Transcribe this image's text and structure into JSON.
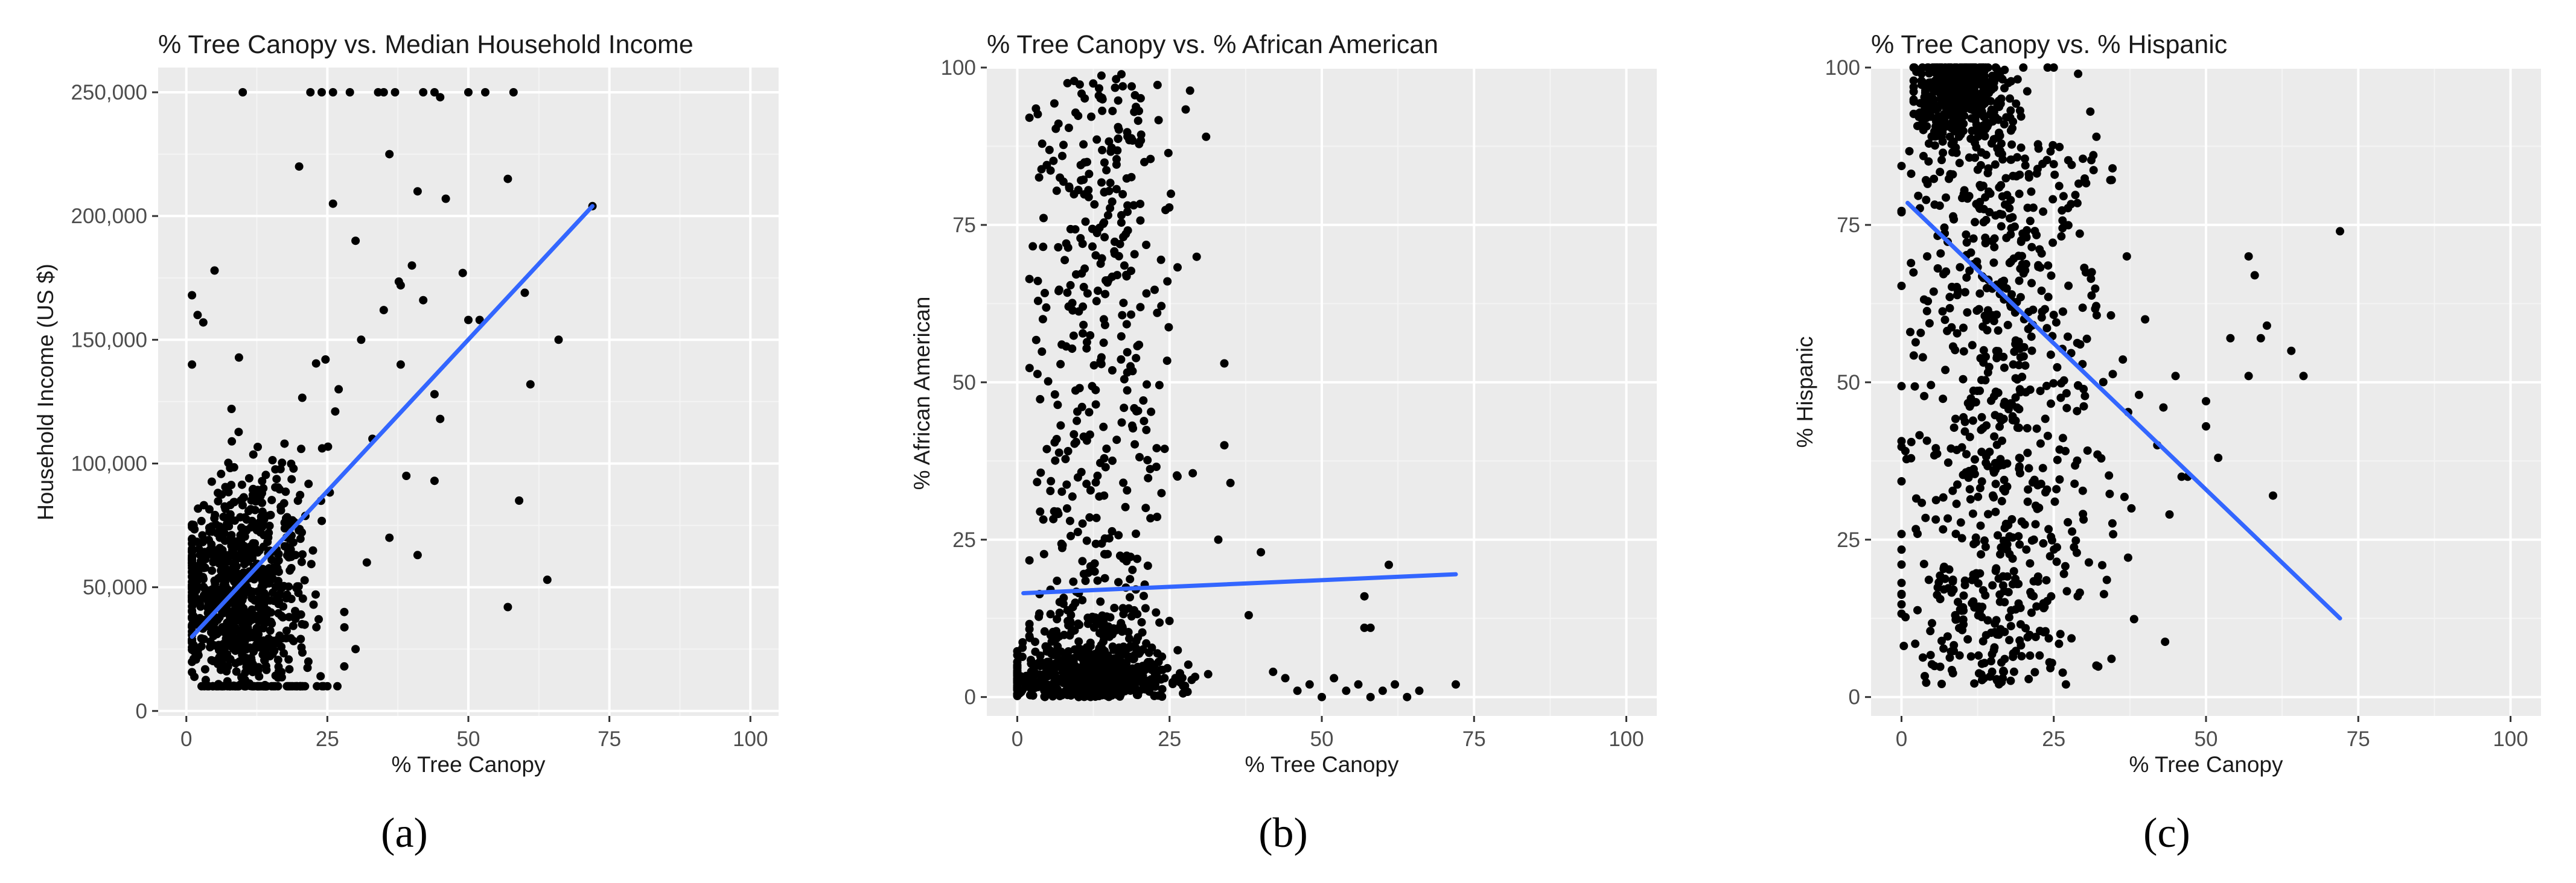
{
  "chart_data": [
    {
      "type": "scatter",
      "panel_label": "(a)",
      "title": "% Tree Canopy vs. Median Household Income",
      "xlabel": "% Tree Canopy",
      "ylabel": "Household Income (US $)",
      "xlim": [
        -5,
        105
      ],
      "ylim": [
        -2000,
        260000
      ],
      "x_ticks": [
        0,
        25,
        50,
        75,
        100
      ],
      "x_tick_labels": [
        "0",
        "25",
        "50",
        "75",
        "100"
      ],
      "y_ticks": [
        0,
        50000,
        100000,
        150000,
        200000,
        250000
      ],
      "y_tick_labels": [
        "0",
        "50,000",
        "100,000",
        "150,000",
        "200,000",
        "250,000"
      ],
      "grid": true,
      "background": "#ebebeb",
      "point_color": "#000000",
      "trend_line": {
        "color": "#3366ff",
        "x": [
          1,
          72
        ],
        "y": [
          30000,
          204000
        ]
      },
      "cluster": {
        "x_center": 10,
        "x_sd": 6,
        "x_min": 1,
        "x_max": 40,
        "y_center": 48000,
        "y_sd": 26000,
        "y_min": 10000,
        "y_max": 200000,
        "count": 850,
        "seed": 11
      },
      "points": [
        {
          "x": 10,
          "y": 250000
        },
        {
          "x": 22,
          "y": 250000
        },
        {
          "x": 24,
          "y": 250000
        },
        {
          "x": 26,
          "y": 250000
        },
        {
          "x": 29,
          "y": 250000
        },
        {
          "x": 34,
          "y": 250000
        },
        {
          "x": 35,
          "y": 250000
        },
        {
          "x": 44,
          "y": 250000
        },
        {
          "x": 45,
          "y": 248000
        },
        {
          "x": 50,
          "y": 250000
        },
        {
          "x": 53,
          "y": 250000
        },
        {
          "x": 58,
          "y": 250000
        },
        {
          "x": 37,
          "y": 250000
        },
        {
          "x": 42,
          "y": 250000
        },
        {
          "x": 20,
          "y": 220000
        },
        {
          "x": 36,
          "y": 225000
        },
        {
          "x": 57,
          "y": 215000
        },
        {
          "x": 41,
          "y": 210000
        },
        {
          "x": 46,
          "y": 207000
        },
        {
          "x": 26,
          "y": 205000
        },
        {
          "x": 72,
          "y": 204000
        },
        {
          "x": 49,
          "y": 177000
        },
        {
          "x": 50,
          "y": 158000
        },
        {
          "x": 52,
          "y": 158000
        },
        {
          "x": 60,
          "y": 169000
        },
        {
          "x": 66,
          "y": 150000
        },
        {
          "x": 61,
          "y": 132000
        },
        {
          "x": 44,
          "y": 128000
        },
        {
          "x": 45,
          "y": 118000
        },
        {
          "x": 44,
          "y": 93000
        },
        {
          "x": 59,
          "y": 85000
        },
        {
          "x": 64,
          "y": 53000
        },
        {
          "x": 57,
          "y": 42000
        },
        {
          "x": 1,
          "y": 168000
        },
        {
          "x": 2,
          "y": 160000
        },
        {
          "x": 3,
          "y": 157000
        },
        {
          "x": 5,
          "y": 178000
        },
        {
          "x": 1,
          "y": 140000
        },
        {
          "x": 42,
          "y": 166000
        },
        {
          "x": 40,
          "y": 180000
        },
        {
          "x": 38,
          "y": 172000
        },
        {
          "x": 35,
          "y": 162000
        },
        {
          "x": 30,
          "y": 190000
        },
        {
          "x": 31,
          "y": 150000
        },
        {
          "x": 27,
          "y": 130000
        },
        {
          "x": 33,
          "y": 110000
        },
        {
          "x": 39,
          "y": 95000
        },
        {
          "x": 36,
          "y": 70000
        },
        {
          "x": 32,
          "y": 60000
        },
        {
          "x": 28,
          "y": 40000
        },
        {
          "x": 30,
          "y": 25000
        },
        {
          "x": 28,
          "y": 18000
        },
        {
          "x": 41,
          "y": 63000
        },
        {
          "x": 38,
          "y": 140000
        }
      ]
    },
    {
      "type": "scatter",
      "panel_label": "(b)",
      "title": "% Tree Canopy vs. % African American",
      "xlabel": "% Tree Canopy",
      "ylabel": "% African American",
      "xlim": [
        -5,
        105
      ],
      "ylim": [
        -3,
        100
      ],
      "x_ticks": [
        0,
        25,
        50,
        75,
        100
      ],
      "x_tick_labels": [
        "0",
        "25",
        "50",
        "75",
        "100"
      ],
      "y_ticks": [
        0,
        25,
        50,
        75,
        100
      ],
      "y_tick_labels": [
        "0",
        "25",
        "50",
        "75",
        "100"
      ],
      "grid": true,
      "background": "#ebebeb",
      "point_color": "#000000",
      "trend_line": {
        "color": "#3366ff",
        "x": [
          1,
          72
        ],
        "y": [
          16.5,
          19.5
        ]
      },
      "cluster": {
        "x_center": 11,
        "x_sd": 7,
        "x_min": 0,
        "x_max": 45,
        "y_center": 0,
        "y_sd": 5,
        "y_min": 0,
        "y_max": 20,
        "count": 650,
        "seed": 23
      },
      "cluster2": {
        "x_center": 14,
        "x_sd": 6,
        "x_min": 2,
        "x_max": 36,
        "y_min": 10,
        "y_max": 99,
        "count": 400,
        "seed": 37
      },
      "points": [
        {
          "x": 44,
          "y": 3
        },
        {
          "x": 46,
          "y": 1
        },
        {
          "x": 48,
          "y": 2
        },
        {
          "x": 50,
          "y": 0
        },
        {
          "x": 52,
          "y": 3
        },
        {
          "x": 54,
          "y": 1
        },
        {
          "x": 56,
          "y": 2
        },
        {
          "x": 58,
          "y": 0
        },
        {
          "x": 60,
          "y": 1
        },
        {
          "x": 62,
          "y": 2
        },
        {
          "x": 64,
          "y": 0
        },
        {
          "x": 66,
          "y": 1
        },
        {
          "x": 72,
          "y": 2
        },
        {
          "x": 57,
          "y": 16
        },
        {
          "x": 58,
          "y": 11
        },
        {
          "x": 61,
          "y": 21
        },
        {
          "x": 57,
          "y": 11
        },
        {
          "x": 42,
          "y": 4
        },
        {
          "x": 38,
          "y": 13
        },
        {
          "x": 40,
          "y": 23
        },
        {
          "x": 34,
          "y": 40
        },
        {
          "x": 35,
          "y": 34
        },
        {
          "x": 31,
          "y": 89
        },
        {
          "x": 34,
          "y": 53
        },
        {
          "x": 33,
          "y": 25
        }
      ]
    },
    {
      "type": "scatter",
      "panel_label": "(c)",
      "title": "% Tree Canopy vs. % Hispanic",
      "xlabel": "% Tree Canopy",
      "ylabel": "% Hispanic",
      "xlim": [
        -5,
        105
      ],
      "ylim": [
        -3,
        100
      ],
      "x_ticks": [
        0,
        25,
        50,
        75,
        100
      ],
      "x_tick_labels": [
        "0",
        "25",
        "50",
        "75",
        "100"
      ],
      "y_ticks": [
        0,
        25,
        50,
        75,
        100
      ],
      "y_tick_labels": [
        "0",
        "25",
        "50",
        "75",
        "100"
      ],
      "grid": true,
      "background": "#ebebeb",
      "point_color": "#000000",
      "trend_line": {
        "color": "#3366ff",
        "x": [
          1,
          72
        ],
        "y": [
          78.5,
          12.5
        ]
      },
      "cluster": {
        "x_center": 10,
        "x_sd": 4,
        "x_min": 2,
        "x_max": 24,
        "y_center": 95,
        "y_sd": 4,
        "y_min": 82,
        "y_max": 100,
        "count": 450,
        "seed": 51
      },
      "cluster2": {
        "x_center": 16,
        "x_sd": 8,
        "x_min": 0,
        "x_max": 48,
        "y_min": 2,
        "y_max": 88,
        "count": 750,
        "seed": 67
      },
      "points": [
        {
          "x": 72,
          "y": 74
        },
        {
          "x": 57,
          "y": 70
        },
        {
          "x": 58,
          "y": 67
        },
        {
          "x": 59,
          "y": 57
        },
        {
          "x": 60,
          "y": 59
        },
        {
          "x": 64,
          "y": 55
        },
        {
          "x": 66,
          "y": 51
        },
        {
          "x": 57,
          "y": 51
        },
        {
          "x": 54,
          "y": 57
        },
        {
          "x": 61,
          "y": 32
        },
        {
          "x": 50,
          "y": 47
        },
        {
          "x": 50,
          "y": 43
        },
        {
          "x": 52,
          "y": 38
        },
        {
          "x": 46,
          "y": 35
        },
        {
          "x": 47,
          "y": 35
        },
        {
          "x": 44,
          "y": 29
        },
        {
          "x": 45,
          "y": 51
        },
        {
          "x": 43,
          "y": 46
        },
        {
          "x": 42,
          "y": 40
        },
        {
          "x": 40,
          "y": 60
        },
        {
          "x": 39,
          "y": 48
        },
        {
          "x": 37,
          "y": 70
        },
        {
          "x": 32,
          "y": 89
        },
        {
          "x": 29,
          "y": 99
        },
        {
          "x": 31,
          "y": 93
        },
        {
          "x": 32,
          "y": 5
        },
        {
          "x": 27,
          "y": 2
        },
        {
          "x": 25,
          "y": 100
        },
        {
          "x": 20,
          "y": 100
        }
      ]
    }
  ]
}
